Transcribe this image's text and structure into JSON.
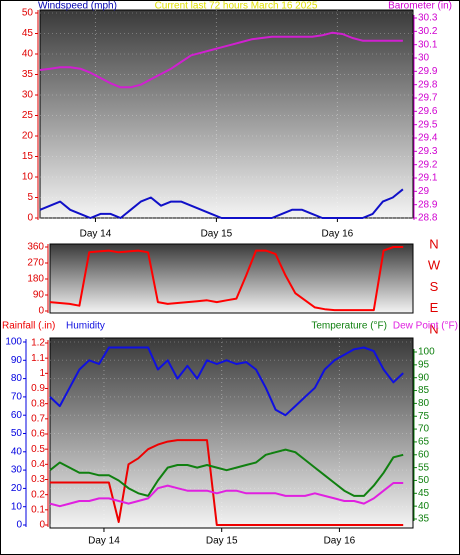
{
  "chart_data": [
    {
      "type": "line",
      "title": "Current last 72 hours March 16 2025",
      "ylabel": "Windspeed (mph)",
      "y2label": "Barometer (in)",
      "x": [
        0,
        2,
        4,
        6,
        8,
        10,
        12,
        14,
        16,
        18,
        20,
        22,
        24,
        26,
        28,
        30,
        32,
        34,
        36,
        38,
        40,
        42,
        44,
        46,
        48,
        50,
        52,
        54,
        56,
        58,
        60,
        62,
        64,
        66,
        68,
        70,
        72
      ],
      "xlim": [
        0,
        74
      ],
      "xticks": [
        {
          "value": 11,
          "label": "Day 14"
        },
        {
          "value": 35,
          "label": "Day 15"
        },
        {
          "value": 59,
          "label": "Day 16"
        }
      ],
      "ylim": [
        0,
        50
      ],
      "yticks": [
        0,
        5,
        10,
        15,
        20,
        25,
        30,
        35,
        40,
        45,
        50
      ],
      "y2lim": [
        28.8,
        30.3
      ],
      "y2ticks": [
        28.8,
        28.9,
        29,
        29.1,
        29.2,
        29.3,
        29.4,
        29.5,
        29.6,
        29.7,
        29.8,
        29.9,
        30,
        30.1,
        30.2,
        30.3
      ],
      "grid": true,
      "series": [
        {
          "color": "#1010c8",
          "values": [
            2,
            3,
            4,
            2,
            1,
            0,
            1,
            1,
            0,
            2,
            4,
            5,
            3,
            4,
            4,
            3,
            2,
            1,
            0,
            0,
            0,
            0,
            0,
            0,
            1,
            2,
            2,
            1,
            0,
            0,
            0,
            0,
            0,
            1,
            4,
            5,
            7
          ]
        },
        {
          "color": "#d020d0",
          "axis": "y2",
          "values": [
            29.91,
            29.92,
            29.93,
            29.93,
            29.92,
            29.89,
            29.85,
            29.81,
            29.78,
            29.78,
            29.8,
            29.84,
            29.88,
            29.92,
            29.97,
            30.02,
            30.04,
            30.06,
            30.08,
            30.1,
            30.12,
            30.14,
            30.15,
            30.16,
            30.16,
            30.16,
            30.16,
            30.16,
            30.17,
            30.19,
            30.18,
            30.15,
            30.13,
            30.13,
            30.13,
            30.13,
            30.13
          ]
        }
      ]
    },
    {
      "type": "line",
      "x": [
        0,
        2,
        4,
        6,
        8,
        10,
        12,
        14,
        16,
        18,
        20,
        22,
        24,
        26,
        28,
        30,
        32,
        34,
        36,
        38,
        40,
        42,
        44,
        46,
        48,
        50,
        52,
        54,
        56,
        58,
        60,
        62,
        64,
        66,
        68,
        70,
        72
      ],
      "xlim": [
        0,
        74
      ],
      "ylim": [
        0,
        360
      ],
      "yticks": [
        0,
        90,
        180,
        270,
        360
      ],
      "y2lim": [
        0,
        360
      ],
      "y2ticks": [
        {
          "value": 360,
          "label": "N"
        },
        {
          "value": 270,
          "label": "W"
        },
        {
          "value": 180,
          "label": "S"
        },
        {
          "value": 90,
          "label": "E"
        },
        {
          "value": 0,
          "label": "N"
        }
      ],
      "series": [
        {
          "color": "#ff0000",
          "values": [
            50,
            45,
            40,
            30,
            330,
            335,
            340,
            330,
            335,
            340,
            330,
            50,
            40,
            45,
            50,
            55,
            60,
            50,
            60,
            70,
            200,
            340,
            340,
            320,
            200,
            100,
            60,
            20,
            10,
            5,
            5,
            5,
            5,
            5,
            340,
            360,
            360
          ]
        }
      ]
    },
    {
      "type": "line",
      "x": [
        0,
        2,
        4,
        6,
        8,
        10,
        12,
        14,
        16,
        18,
        20,
        22,
        24,
        26,
        28,
        30,
        32,
        34,
        36,
        38,
        40,
        42,
        44,
        46,
        48,
        50,
        52,
        54,
        56,
        58,
        60,
        62,
        64,
        66,
        68,
        70,
        72
      ],
      "xlim": [
        0,
        74
      ],
      "xticks": [
        {
          "value": 11,
          "label": "Day 14"
        },
        {
          "value": 35,
          "label": "Day 15"
        },
        {
          "value": 59,
          "label": "Day 16"
        }
      ],
      "ylim": [
        0,
        100
      ],
      "yticks": [
        0,
        10,
        20,
        30,
        40,
        50,
        60,
        70,
        80,
        90,
        100
      ],
      "y3lim": [
        0,
        1.2
      ],
      "y3ticks": [
        0,
        0.1,
        0.2,
        0.3,
        0.4,
        0.5,
        0.6,
        0.7,
        0.8,
        0.9,
        1,
        1.1,
        1.2
      ],
      "y2lim": [
        35,
        100
      ],
      "y2ticks": [
        35,
        40,
        45,
        50,
        55,
        60,
        65,
        70,
        75,
        80,
        85,
        90,
        95,
        100
      ],
      "grid": true,
      "series": [
        {
          "name": "Rainfall (.in)",
          "color": "#ee0000",
          "axis": "y3",
          "values": [
            0.28,
            0.28,
            0.28,
            0.28,
            0.28,
            0.28,
            0.28,
            0.02,
            0.4,
            0.44,
            0.5,
            0.53,
            0.55,
            0.56,
            0.56,
            0.56,
            0.56,
            0,
            0,
            0,
            0,
            0,
            0,
            0,
            0,
            0,
            0,
            0,
            0,
            0,
            0,
            0,
            0,
            0,
            0,
            0,
            0
          ]
        },
        {
          "name": "Humidity",
          "color": "#1010e0",
          "values": [
            70,
            65,
            75,
            85,
            90,
            88,
            97,
            97,
            97,
            97,
            97,
            85,
            90,
            80,
            87,
            80,
            90,
            88,
            90,
            88,
            89,
            85,
            75,
            63,
            60,
            65,
            70,
            75,
            85,
            90,
            93,
            96,
            97,
            95,
            85,
            78,
            83
          ]
        },
        {
          "name": "Temperature (°F)",
          "color": "#108010",
          "axis": "y2",
          "values": [
            54,
            57,
            55,
            53,
            53,
            52,
            52,
            50,
            47,
            45,
            44,
            50,
            55,
            56,
            56,
            55,
            56,
            55,
            54,
            55,
            56,
            57,
            60,
            61,
            62,
            61,
            58,
            55,
            52,
            49,
            46,
            44,
            44,
            48,
            53,
            59,
            60
          ]
        },
        {
          "name": "Dew Point (°F)",
          "color": "#e020e0",
          "axis": "y2",
          "values": [
            41,
            40,
            41,
            42,
            42,
            43,
            43,
            42,
            41,
            42,
            43,
            47,
            48,
            47,
            46,
            46,
            46,
            45,
            46,
            46,
            45,
            45,
            45,
            45,
            44,
            44,
            44,
            45,
            44,
            43,
            42,
            42,
            41,
            43,
            46,
            49,
            49
          ]
        }
      ]
    }
  ]
}
